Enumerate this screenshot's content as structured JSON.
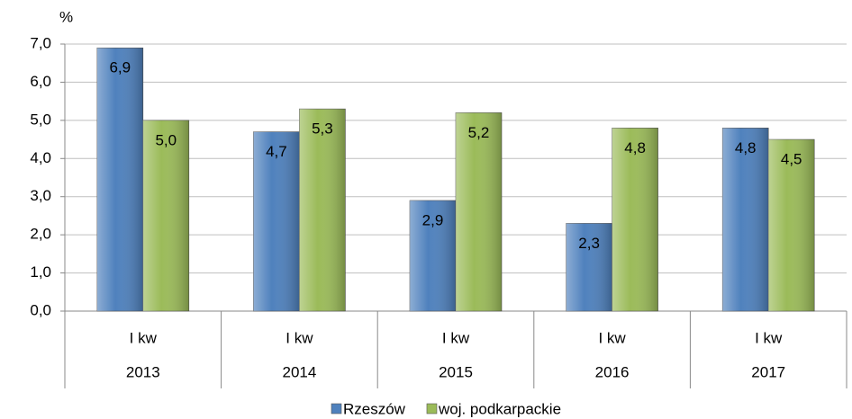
{
  "chart_data": {
    "type": "bar",
    "y_label": "%",
    "categories": [
      "2013",
      "2014",
      "2015",
      "2016",
      "2017"
    ],
    "quarters": [
      "I kw",
      "I kw",
      "I kw",
      "I kw",
      "I kw"
    ],
    "series": [
      {
        "name": "Rzeszów",
        "color": "#4f81bd",
        "values": [
          6.9,
          4.7,
          2.9,
          2.3,
          4.8
        ],
        "value_labels": [
          "6,9",
          "4,7",
          "2,9",
          "2,3",
          "4,8"
        ]
      },
      {
        "name": "woj. podkarpackie",
        "color": "#9bbb59",
        "values": [
          5.0,
          5.3,
          5.2,
          4.8,
          4.5
        ],
        "value_labels": [
          "5,0",
          "5,3",
          "5,2",
          "4,8",
          "4,5"
        ]
      }
    ],
    "ylim": [
      0,
      7
    ],
    "yticks": [
      {
        "value": 0,
        "label": "0,0"
      },
      {
        "value": 1,
        "label": "1,0"
      },
      {
        "value": 2,
        "label": "2,0"
      },
      {
        "value": 3,
        "label": "3,0"
      },
      {
        "value": 4,
        "label": "4,0"
      },
      {
        "value": 5,
        "label": "5,0"
      },
      {
        "value": 6,
        "label": "6,0"
      },
      {
        "value": 7,
        "label": "7,0"
      }
    ],
    "grid": true,
    "legend": "bottom"
  }
}
